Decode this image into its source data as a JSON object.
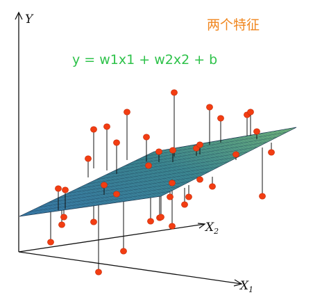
{
  "title": "两个特征",
  "formula": "y = w1x1 + w2x2 + b",
  "axes": {
    "y_label": "Y",
    "x1_label": "X",
    "x1_sub": "1",
    "x2_label": "X",
    "x2_sub": "2"
  },
  "colors": {
    "title": "#f0861e",
    "formula": "#2ec24a",
    "points": "#f23d12",
    "plane_light": "#7ec48a",
    "plane_dark": "#2f6f9e",
    "axes": "#111111"
  },
  "plane_grid": {
    "rows": 14,
    "cols": 30
  }
}
